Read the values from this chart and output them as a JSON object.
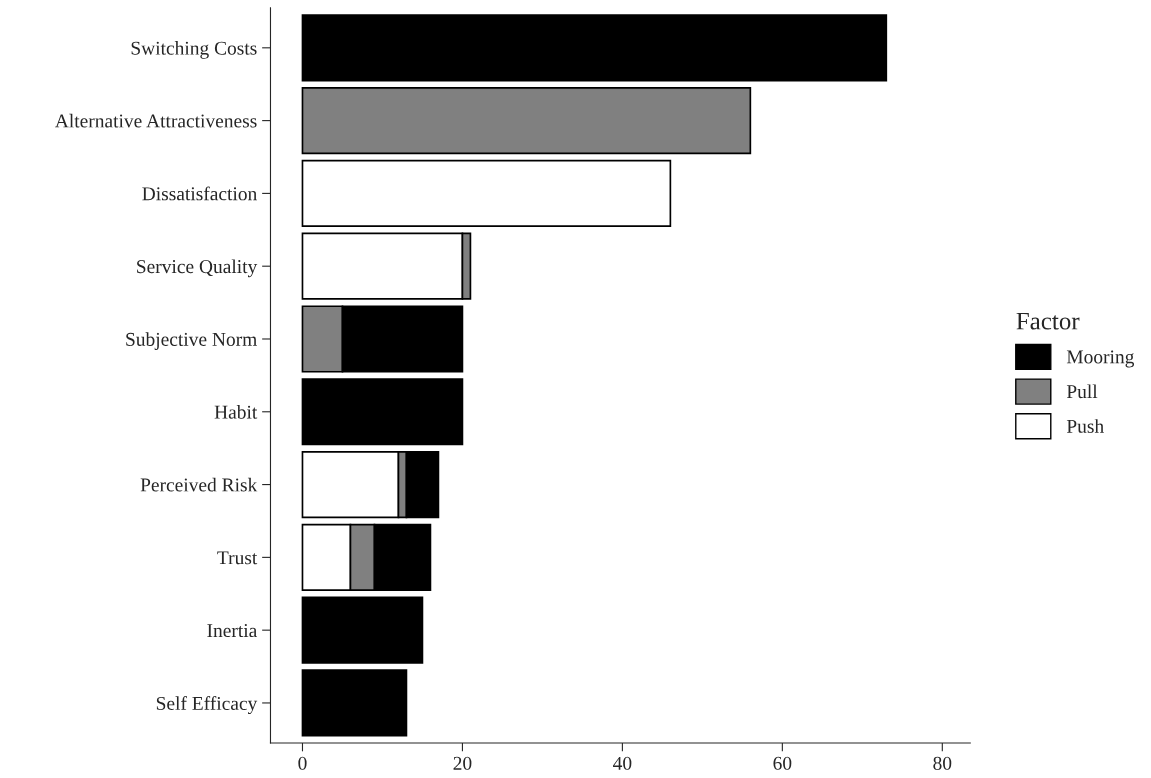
{
  "chart_data": {
    "type": "bar",
    "orientation": "horizontal",
    "stacked": true,
    "categories": [
      "Switching Costs",
      "Alternative Attractiveness",
      "Dissatisfaction",
      "Service Quality",
      "Subjective Norm",
      "Habit",
      "Perceived Risk",
      "Trust",
      "Inertia",
      "Self Efficacy"
    ],
    "series": [
      {
        "name": "Push",
        "color": "#ffffff",
        "values": [
          null,
          null,
          46,
          20,
          null,
          null,
          12,
          6,
          null,
          null
        ]
      },
      {
        "name": "Pull",
        "color": "#808080",
        "values": [
          null,
          56,
          null,
          1,
          5,
          null,
          1,
          3,
          null,
          null
        ]
      },
      {
        "name": "Mooring",
        "color": "#000000",
        "values": [
          73,
          null,
          null,
          null,
          15,
          20,
          4,
          7,
          15,
          13
        ]
      }
    ],
    "legend_title": "Factor",
    "legend": "right",
    "xlim": [
      -4,
      83.5
    ],
    "xticks": [
      0,
      20,
      40,
      60,
      80
    ],
    "grid": false
  }
}
